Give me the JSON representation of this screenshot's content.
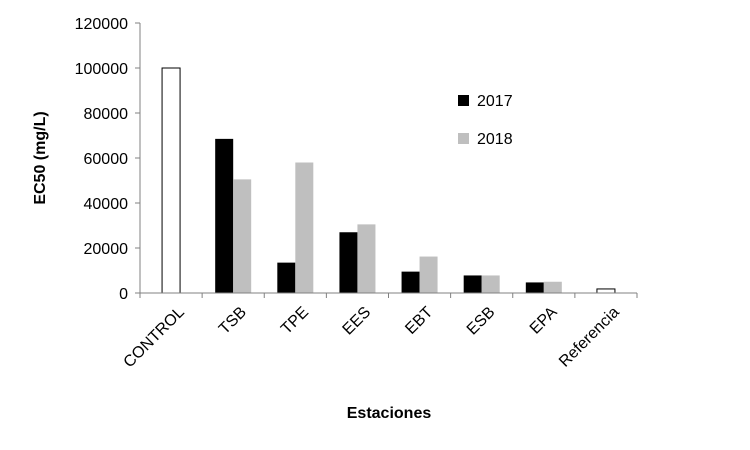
{
  "chart_data": {
    "type": "bar",
    "title": "",
    "xlabel": "Estaciones",
    "ylabel": "EC50 (mg/L)",
    "ylim": [
      0,
      120000
    ],
    "yticks": [
      0,
      20000,
      40000,
      60000,
      80000,
      100000,
      120000
    ],
    "categories": [
      "CONTROL",
      "TSB",
      "TPE",
      "EES",
      "EBT",
      "ESB",
      "EPA",
      "Referencia"
    ],
    "series": [
      {
        "name": "2017",
        "color": "#000000",
        "values": [
          null,
          68500,
          13500,
          27000,
          9500,
          7800,
          4700,
          null
        ]
      },
      {
        "name": "2018",
        "color": "#bfbfbf",
        "values": [
          null,
          50500,
          58000,
          30500,
          16200,
          7800,
          5000,
          null
        ]
      },
      {
        "name": "",
        "color": "#ffffff",
        "stroke": "#000000",
        "values": [
          100000,
          null,
          null,
          null,
          null,
          null,
          null,
          1800
        ]
      }
    ],
    "legend": {
      "placement": "top-right"
    },
    "grid": false
  }
}
